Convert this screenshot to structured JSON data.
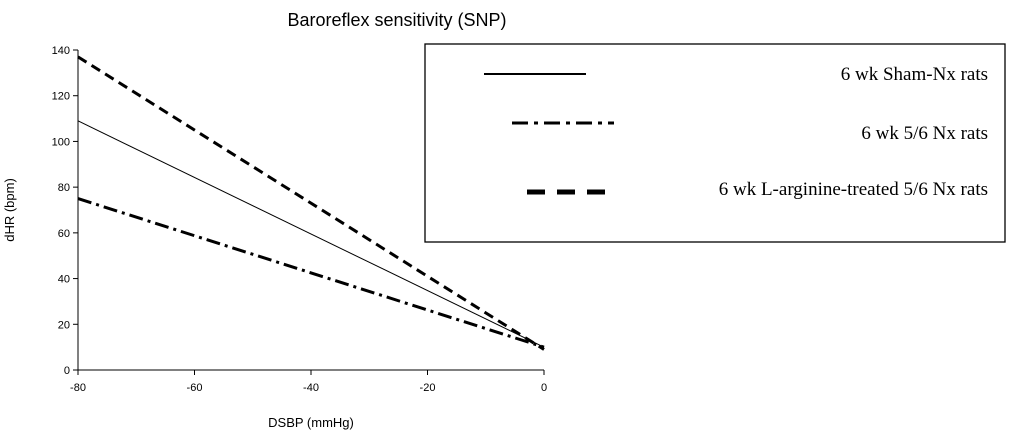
{
  "chart_data": {
    "type": "line",
    "title": "Baroreflex sensitivity (SNP)",
    "xlabel": "DSBP (mmHg)",
    "ylabel": "dHR (bpm)",
    "xlim": [
      -80,
      0
    ],
    "ylim": [
      0,
      140
    ],
    "xticks": [
      -80,
      -60,
      -40,
      -20,
      0
    ],
    "yticks": [
      0,
      20,
      40,
      60,
      80,
      100,
      120,
      140
    ],
    "grid": false,
    "legend_position": "top-right",
    "series": [
      {
        "name": "6 wk Sham-Nx rats",
        "style": "solid",
        "x": [
          -80,
          0
        ],
        "y": [
          109,
          10
        ]
      },
      {
        "name": "6 wk 5/6 Nx rats",
        "style": "dash-dot",
        "x": [
          -80,
          0
        ],
        "y": [
          75,
          10
        ]
      },
      {
        "name": "6 wk L-arginine-treated 5/6 Nx rats",
        "style": "dashed",
        "x": [
          -80,
          0
        ],
        "y": [
          137,
          9
        ]
      }
    ]
  }
}
